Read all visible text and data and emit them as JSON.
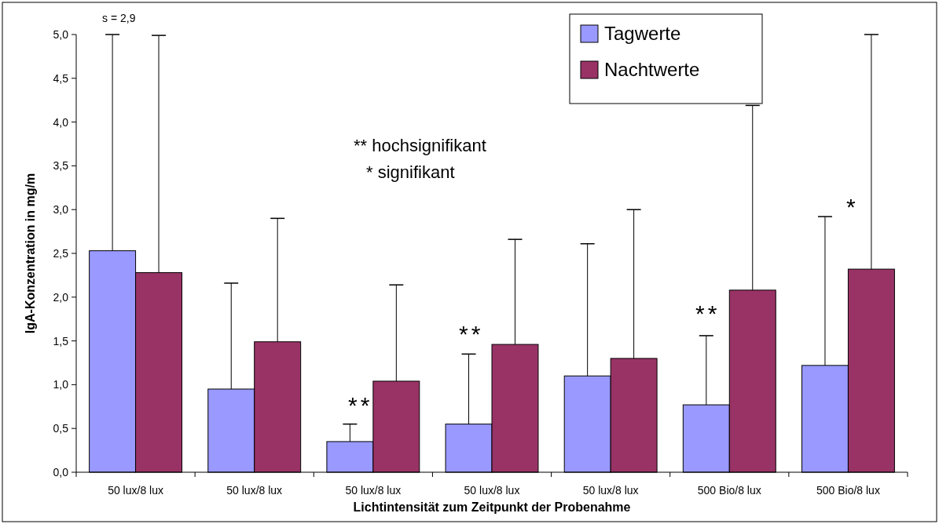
{
  "chart_data": {
    "type": "bar",
    "xlabel": "Lichtintensität zum Zeitpunkt der Probenahme",
    "ylabel": "IgA-Konzentration in mg/m",
    "categories": [
      "50 lux/8 lux",
      "50 lux/8 lux",
      "50 lux/8 lux",
      "50 lux/8 lux",
      "50 lux/8 lux",
      "500 Bio/8 lux",
      "500 Bio/8 lux"
    ],
    "series": [
      {
        "name": "Tagwerte",
        "color": "#9999ff",
        "values": [
          2.53,
          0.95,
          0.35,
          0.55,
          1.1,
          0.77,
          1.22
        ],
        "errors": [
          [
            2.53,
            5.0
          ],
          [
            0.95,
            2.16
          ],
          [
            0.35,
            0.55
          ],
          [
            0.55,
            1.35
          ],
          [
            1.1,
            2.61
          ],
          [
            0.77,
            1.56
          ],
          [
            1.22,
            2.92
          ]
        ]
      },
      {
        "name": "Nachtwerte",
        "color": "#993366",
        "values": [
          2.28,
          1.49,
          1.04,
          1.46,
          1.3,
          2.08,
          2.32
        ],
        "errors": [
          [
            2.28,
            4.99
          ],
          [
            1.49,
            2.9
          ],
          [
            1.04,
            2.14
          ],
          [
            1.46,
            2.66
          ],
          [
            1.3,
            3.0
          ],
          [
            2.08,
            4.19
          ],
          [
            2.32,
            5.0
          ]
        ]
      }
    ],
    "ylim": [
      0,
      5
    ],
    "yticks": [
      {
        "value": 0,
        "label": "0,0"
      },
      {
        "value": 0.5,
        "label": "0,5"
      },
      {
        "value": 1,
        "label": "1,0"
      },
      {
        "value": 1.5,
        "label": "1,5"
      },
      {
        "value": 2,
        "label": "2,0"
      },
      {
        "value": 2.5,
        "label": "2,5"
      },
      {
        "value": 3,
        "label": "3,0"
      },
      {
        "value": 3.5,
        "label": "3,5"
      },
      {
        "value": 4,
        "label": "4,0"
      },
      {
        "value": 4.5,
        "label": "4,5"
      },
      {
        "value": 5,
        "label": "5,0"
      }
    ],
    "annotations": [
      "** hochsignifikant",
      "* signifikant",
      "s = 2,9",
      "**",
      "**",
      "**",
      "*"
    ],
    "legend": "top right",
    "grid": false
  }
}
